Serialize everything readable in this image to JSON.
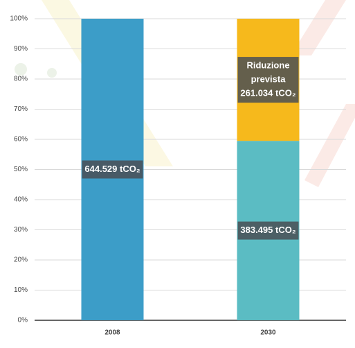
{
  "chart_data": {
    "type": "stacked-bar",
    "categories": [
      "2008",
      "2030"
    ],
    "series": [
      {
        "colors": [
          "#3c9dc8",
          "#5bbcc3"
        ],
        "values": [
          100,
          59.5
        ],
        "labels": [
          [
            "644.529 tCO₂"
          ],
          [
            "383.495 tCO₂"
          ]
        ]
      },
      {
        "colors": [
          "#f6b91c",
          "#f6b91c"
        ],
        "values": [
          null,
          40.5
        ],
        "labels": [
          null,
          [
            "Riduzione",
            "prevista",
            "261.034 tCO₂"
          ]
        ]
      }
    ],
    "ylim": [
      0,
      100
    ],
    "yticks": [
      {
        "value": 0,
        "label": "0%"
      },
      {
        "value": 10,
        "label": "10%"
      },
      {
        "value": 20,
        "label": "20%"
      },
      {
        "value": 30,
        "label": "30%"
      },
      {
        "value": 40,
        "label": "40%"
      },
      {
        "value": 50,
        "label": "50%"
      },
      {
        "value": 60,
        "label": "60%"
      },
      {
        "value": 70,
        "label": "70%"
      },
      {
        "value": 80,
        "label": "80%"
      },
      {
        "value": 90,
        "label": "90%"
      },
      {
        "value": 100,
        "label": "100%"
      }
    ],
    "grid": true
  }
}
